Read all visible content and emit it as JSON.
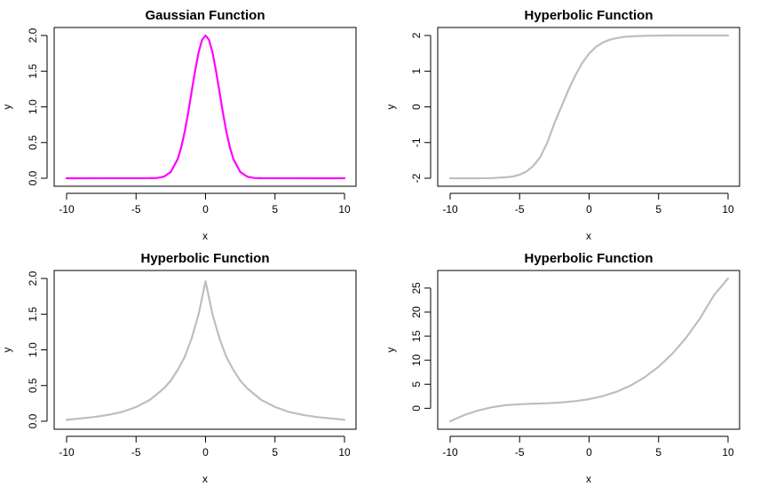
{
  "chart_data": [
    {
      "type": "line",
      "title": "Gaussian Function",
      "xlabel": "x",
      "ylabel": "y",
      "xlim": [
        -10,
        10
      ],
      "ylim": [
        0,
        2
      ],
      "x_ticks": [
        -10,
        -5,
        0,
        5,
        10
      ],
      "y_ticks": [
        0,
        0.5,
        1,
        1.5,
        2
      ],
      "x_tick_labels": [
        "-10",
        "-5",
        "0",
        "5",
        "10"
      ],
      "y_tick_labels": [
        "0.0",
        "0.5",
        "1.0",
        "1.5",
        "2.0"
      ],
      "grid": false,
      "series": [
        {
          "color": "#ff00ff",
          "x": [
            -10,
            -4,
            -3.5,
            -3,
            -2.5,
            -2,
            -1.75,
            -1.5,
            -1.25,
            -1,
            -0.75,
            -0.5,
            -0.25,
            0,
            0.25,
            0.5,
            0.75,
            1,
            1.25,
            1.5,
            1.75,
            2,
            2.5,
            3,
            3.5,
            4,
            10
          ],
          "y": [
            0,
            0.001,
            0.004,
            0.022,
            0.088,
            0.271,
            0.433,
            0.649,
            0.916,
            1.213,
            1.51,
            1.765,
            1.939,
            2.0,
            1.939,
            1.765,
            1.51,
            1.213,
            0.916,
            0.649,
            0.433,
            0.271,
            0.088,
            0.022,
            0.004,
            0.001,
            0
          ]
        }
      ]
    },
    {
      "type": "line",
      "title": "Hyperbolic Function",
      "xlabel": "x",
      "ylabel": "y",
      "xlim": [
        -10,
        10
      ],
      "ylim": [
        -2,
        2
      ],
      "x_ticks": [
        -10,
        -5,
        0,
        5,
        10
      ],
      "y_ticks": [
        -2,
        -1,
        0,
        1,
        2
      ],
      "x_tick_labels": [
        "-10",
        "-5",
        "0",
        "5",
        "10"
      ],
      "y_tick_labels": [
        "-2",
        "-1",
        "0",
        "1",
        "2"
      ],
      "grid": false,
      "series": [
        {
          "color": "#bebebe",
          "x": [
            -10,
            -8,
            -7,
            -6,
            -5.5,
            -5,
            -4.5,
            -4,
            -3.5,
            -3,
            -2.5,
            -2,
            -1.5,
            -1,
            -0.5,
            0,
            0.5,
            1,
            1.5,
            2,
            2.5,
            3,
            4,
            5,
            6,
            8,
            10
          ],
          "y": [
            -2.0,
            -1.999,
            -1.996,
            -1.973,
            -1.953,
            -1.901,
            -1.808,
            -1.646,
            -1.397,
            -0.999,
            -0.459,
            0.0,
            0.46,
            0.878,
            1.226,
            1.494,
            1.681,
            1.805,
            1.882,
            1.929,
            1.958,
            1.975,
            1.991,
            1.997,
            1.999,
            2.0,
            2.0
          ]
        }
      ]
    },
    {
      "type": "line",
      "title": "Hyperbolic Function",
      "xlabel": "x",
      "ylabel": "y",
      "xlim": [
        -10,
        10
      ],
      "ylim": [
        0,
        2
      ],
      "x_ticks": [
        -10,
        -5,
        0,
        5,
        10
      ],
      "y_ticks": [
        0,
        0.5,
        1,
        1.5,
        2
      ],
      "x_tick_labels": [
        "-10",
        "-5",
        "0",
        "5",
        "10"
      ],
      "y_tick_labels": [
        "0.0",
        "0.5",
        "1.0",
        "1.5",
        "2.0"
      ],
      "grid": false,
      "series": [
        {
          "color": "#bebebe",
          "x": [
            -10,
            -9,
            -8,
            -7,
            -6,
            -5,
            -4,
            -3,
            -2.5,
            -2,
            -1.5,
            -1,
            -0.5,
            0,
            0.5,
            1,
            1.5,
            2,
            2.5,
            3,
            4,
            5,
            6,
            7,
            8,
            9,
            10
          ],
          "y": [
            0.02,
            0.04,
            0.06,
            0.09,
            0.13,
            0.2,
            0.3,
            0.46,
            0.57,
            0.72,
            0.9,
            1.16,
            1.5,
            1.96,
            1.5,
            1.16,
            0.9,
            0.72,
            0.57,
            0.46,
            0.3,
            0.2,
            0.13,
            0.09,
            0.06,
            0.04,
            0.02
          ]
        }
      ]
    },
    {
      "type": "line",
      "title": "Hyperbolic Function",
      "xlabel": "x",
      "ylabel": "y",
      "xlim": [
        -10,
        10
      ],
      "ylim": [
        -2.7,
        27
      ],
      "x_ticks": [
        -10,
        -5,
        0,
        5,
        10
      ],
      "y_ticks": [
        0,
        5,
        10,
        15,
        20,
        25
      ],
      "x_tick_labels": [
        "-10",
        "-5",
        "0",
        "5",
        "10"
      ],
      "y_tick_labels": [
        "0",
        "5",
        "10",
        "15",
        "20",
        "25"
      ],
      "grid": false,
      "series": [
        {
          "color": "#bebebe",
          "x": [
            -10,
            -9,
            -8,
            -7,
            -6,
            -5,
            -4,
            -3,
            -2,
            -1,
            0,
            1,
            2,
            3,
            4,
            5,
            6,
            7,
            8,
            9,
            10
          ],
          "y": [
            -2.7,
            -1.43,
            -0.47,
            0.21,
            0.63,
            0.84,
            0.95,
            1.05,
            1.21,
            1.48,
            1.9,
            2.54,
            3.47,
            4.75,
            6.45,
            8.64,
            11.38,
            14.74,
            18.78,
            23.55,
            27.0
          ]
        }
      ]
    }
  ]
}
